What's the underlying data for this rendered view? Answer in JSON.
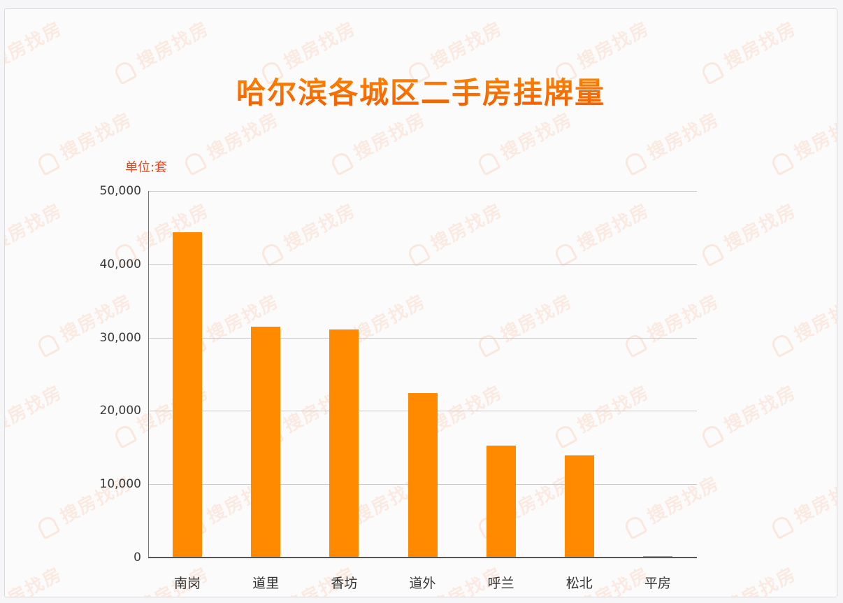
{
  "chart_data": {
    "type": "bar",
    "title": "哈尔滨各城区二手房挂牌量",
    "unit_label": "单位:套",
    "xlabel": "",
    "ylabel": "单位:套",
    "categories": [
      "南岗",
      "道里",
      "香坊",
      "道外",
      "呼兰",
      "松北",
      "平房"
    ],
    "values": [
      44400,
      31500,
      31100,
      22400,
      15300,
      13900,
      150
    ],
    "ylim": [
      0,
      50000
    ],
    "yticks": [
      0,
      10000,
      20000,
      30000,
      40000,
      50000
    ],
    "ytick_labels": [
      "0",
      "10,000",
      "20,000",
      "30,000",
      "40,000",
      "50,000"
    ],
    "grid": true,
    "legend": null,
    "bar_color": "#ff8a00",
    "title_color": "#ff6a00",
    "unit_color": "#e8461c"
  },
  "watermark": {
    "text": "搜房找房"
  }
}
